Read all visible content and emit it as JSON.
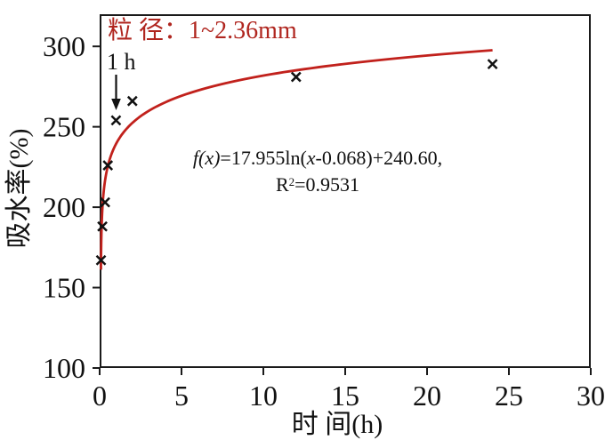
{
  "figure": {
    "annotation": {
      "prefix": "粒 径：",
      "value": "1~2.36mm",
      "color": "#b0261f"
    },
    "point_label": "1 h",
    "equation": {
      "f": "f(x)",
      "p1": "=17.955ln(",
      "x": "x",
      "p2": "-0.068)+240.60,",
      "R": "R",
      "sup": "2",
      "p3": "=0.9531"
    }
  },
  "chart_data": {
    "type": "scatter",
    "title": "",
    "xlabel": "时 间(h)",
    "ylabel": "吸水率(%)",
    "xlim": [
      0,
      30
    ],
    "ylim": [
      100,
      320
    ],
    "xticks": [
      0,
      5,
      10,
      15,
      20,
      25,
      30
    ],
    "yticks": [
      100,
      150,
      200,
      250,
      300
    ],
    "grid": false,
    "legend": "none",
    "marker": "x",
    "marker_color": "#111111",
    "series": [
      {
        "name": "吸水率 (粒径 1~2.36mm)",
        "points": [
          [
            0.083,
            167
          ],
          [
            0.167,
            188
          ],
          [
            0.33,
            203
          ],
          [
            0.5,
            226
          ],
          [
            1,
            254
          ],
          [
            2,
            266
          ],
          [
            12,
            281
          ],
          [
            24,
            289
          ]
        ]
      }
    ],
    "fit": {
      "type": "logarithmic",
      "equation": "f(x)=17.955ln(x-0.068)+240.60",
      "a": 17.955,
      "x0": 0.068,
      "b": 240.6,
      "r_squared": 0.9531,
      "domain": [
        0.08,
        24
      ],
      "color": "#c1211c"
    }
  }
}
